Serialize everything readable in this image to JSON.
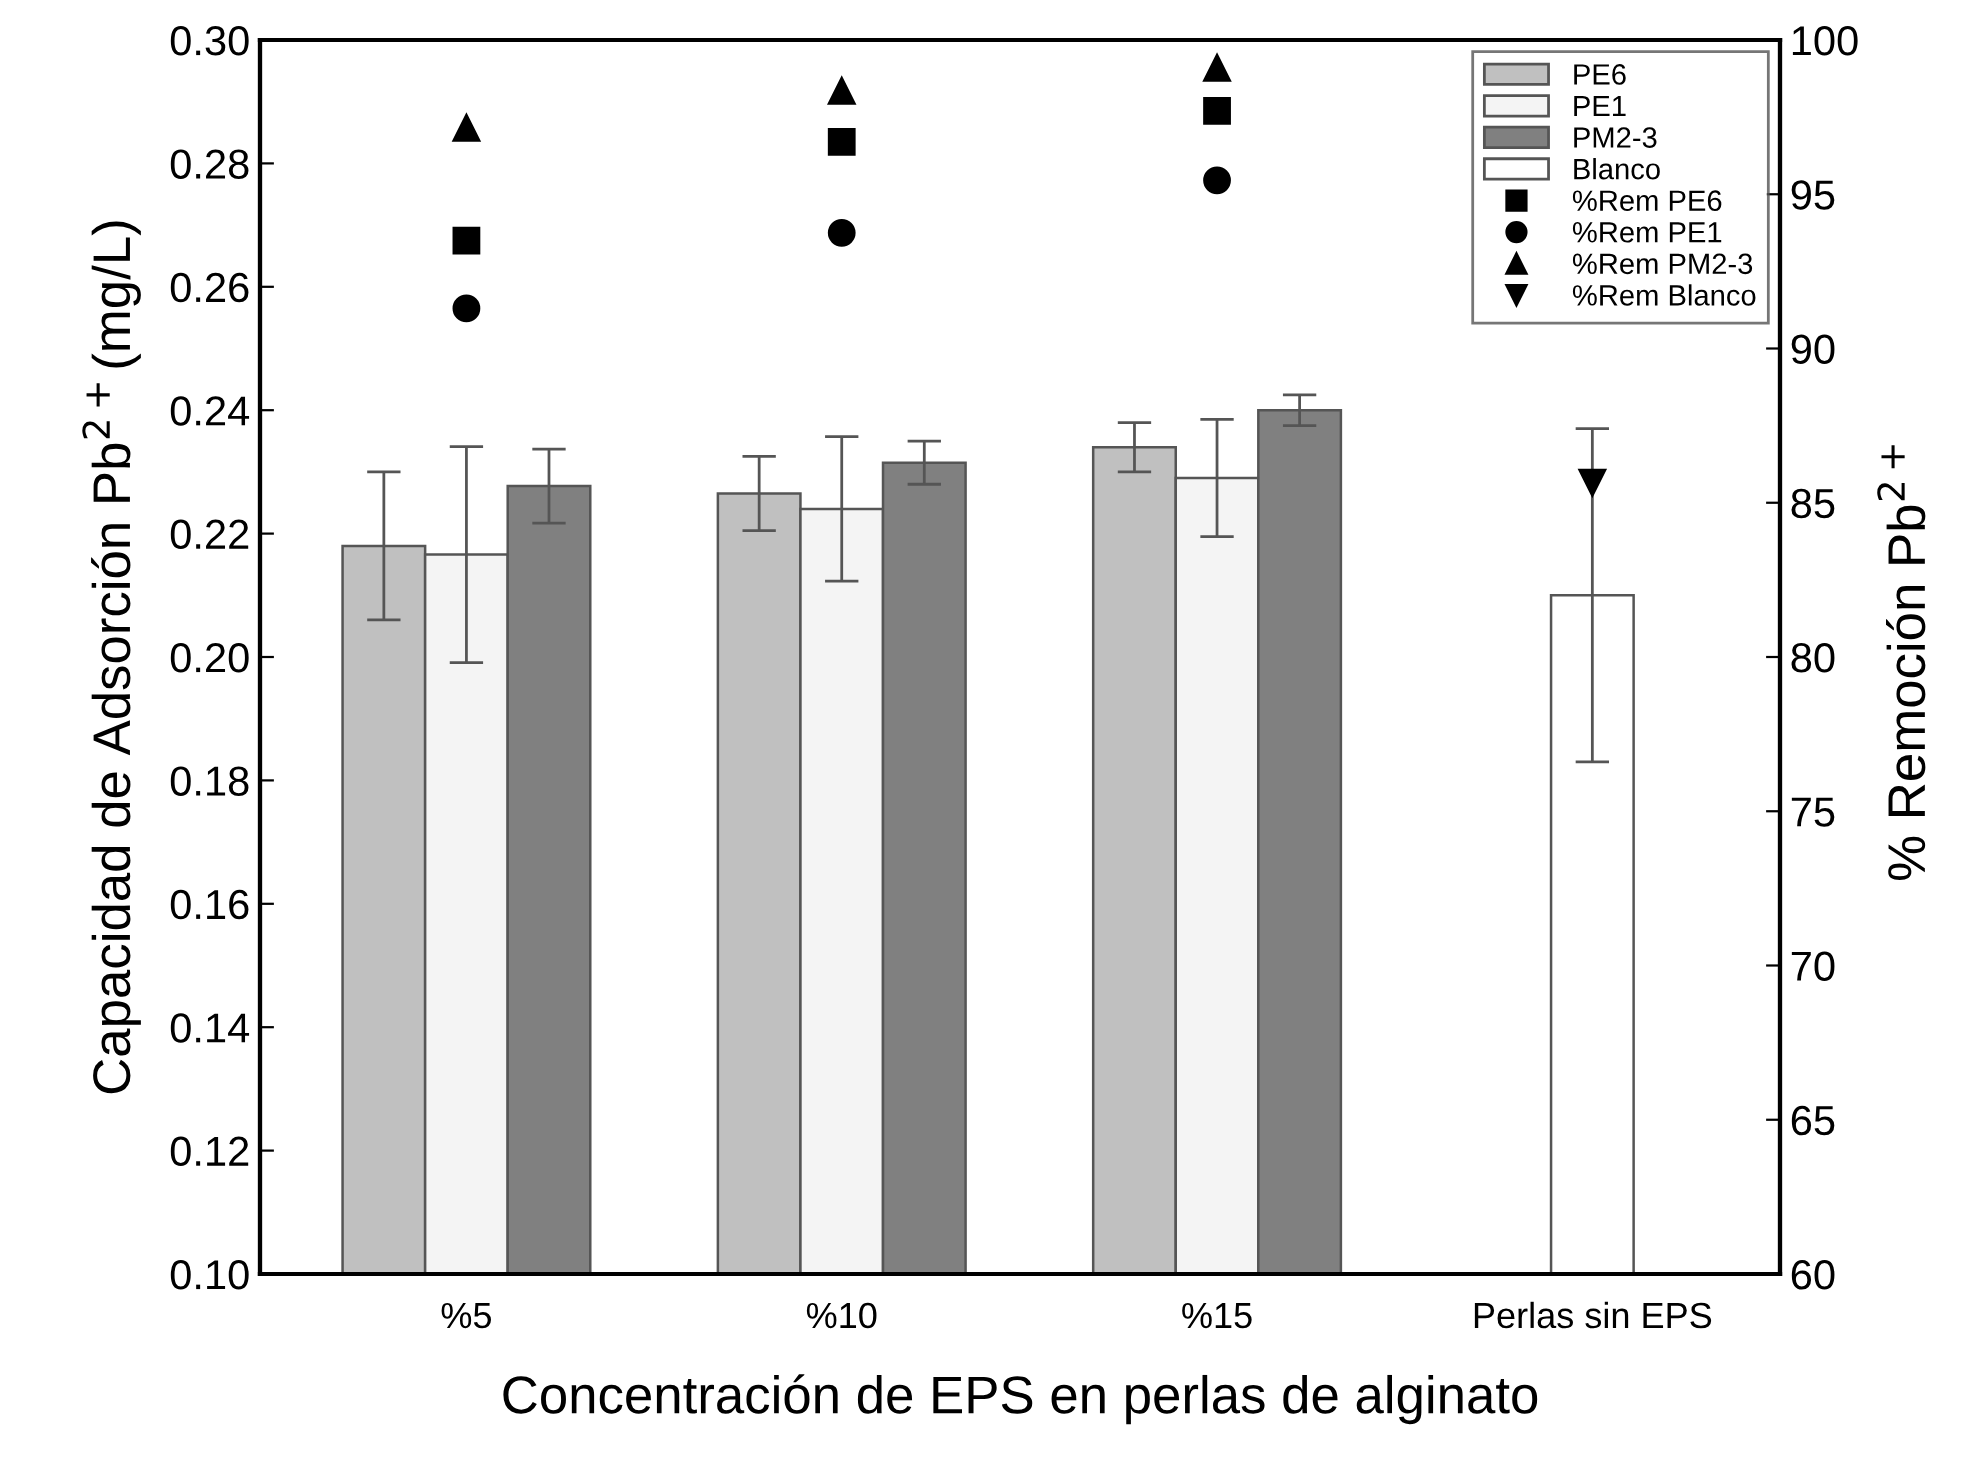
{
  "chart_data": {
    "type": "bar",
    "xlabel": "Concentración de EPS en perlas de alginato",
    "ylabel": "Capacidad de Adsorción Pb$^{2+}$(mg/L)",
    "y2label": "% Remoción Pb$^{2+}$",
    "categories": [
      "%5",
      "%10",
      "%15",
      "Perlas sin EPS"
    ],
    "series": [
      {
        "name": "PE6",
        "color": "#c0c0c0",
        "values": [
          0.218,
          0.2265,
          0.234,
          null
        ],
        "errors": [
          0.012,
          0.006,
          0.004,
          null
        ]
      },
      {
        "name": "PE1",
        "color": "#f4f4f4",
        "values": [
          0.2166,
          0.224,
          0.229,
          null
        ],
        "errors": [
          0.0175,
          0.0117,
          0.0095,
          null
        ]
      },
      {
        "name": "PM2-3",
        "color": "#808080",
        "values": [
          0.2277,
          0.2315,
          0.24,
          null
        ],
        "errors": [
          0.006,
          0.0035,
          0.0025,
          null
        ]
      },
      {
        "name": "Blanco",
        "color": "#ffffff",
        "values": [
          null,
          null,
          null,
          0.21
        ],
        "errors": [
          null,
          null,
          null,
          0.027
        ]
      },
      {
        "name": "%Rem PE6",
        "type": "scatter",
        "axis": "y2",
        "marker": "square",
        "color": "#000000",
        "values": [
          93.5,
          96.7,
          97.7,
          null
        ]
      },
      {
        "name": "%Rem PE1",
        "type": "scatter",
        "axis": "y2",
        "marker": "circle",
        "color": "#000000",
        "values": [
          91.3,
          93.75,
          95.45,
          null
        ]
      },
      {
        "name": "%Rem PM2-3",
        "type": "scatter",
        "axis": "y2",
        "marker": "triangle",
        "color": "#000000",
        "values": [
          97.15,
          98.35,
          99.1,
          null
        ]
      },
      {
        "name": "%Rem Blanco",
        "type": "scatter",
        "axis": "y2",
        "marker": "triangle_down",
        "color": "#000000",
        "values": [
          null,
          null,
          null,
          85.65
        ]
      }
    ],
    "ylim": [
      0.1,
      0.3
    ],
    "yticks": [
      {
        "value": 0.1,
        "label": "0.10"
      },
      {
        "value": 0.12,
        "label": "0.12"
      },
      {
        "value": 0.14,
        "label": "0.14"
      },
      {
        "value": 0.16,
        "label": "0.16"
      },
      {
        "value": 0.18,
        "label": "0.18"
      },
      {
        "value": 0.2,
        "label": "0.20"
      },
      {
        "value": 0.22,
        "label": "0.22"
      },
      {
        "value": 0.24,
        "label": "0.24"
      },
      {
        "value": 0.26,
        "label": "0.26"
      },
      {
        "value": 0.28,
        "label": "0.28"
      },
      {
        "value": 0.3,
        "label": "0.30"
      }
    ],
    "y2lim": [
      60,
      100
    ],
    "y2ticks": [
      60,
      65,
      70,
      75,
      80,
      85,
      90,
      95,
      100
    ],
    "legend": "top right",
    "grid": false
  }
}
